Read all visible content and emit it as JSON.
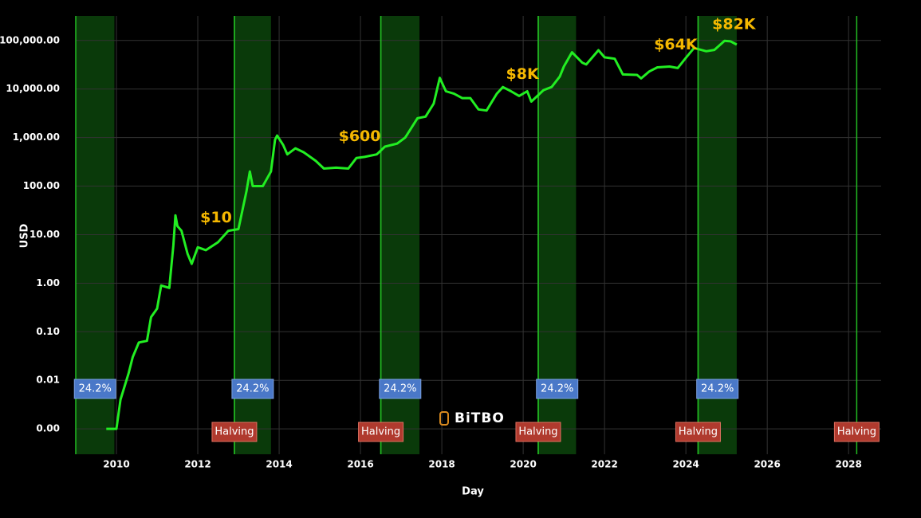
{
  "chart_data": {
    "type": "line",
    "xlabel": "Day",
    "ylabel": "USD",
    "watermark": "BiTBO",
    "color": "#22ee22",
    "x": [
      2009.75,
      2010.0,
      2010.1,
      2010.3,
      2010.4,
      2010.55,
      2010.75,
      2010.85,
      2011.0,
      2011.1,
      2011.3,
      2011.4,
      2011.45,
      2011.5,
      2011.6,
      2011.75,
      2011.85,
      2012.0,
      2012.2,
      2012.5,
      2012.75,
      2013.0,
      2013.2,
      2013.28,
      2013.35,
      2013.6,
      2013.8,
      2013.9,
      2013.95,
      2014.1,
      2014.2,
      2014.4,
      2014.6,
      2014.9,
      2015.1,
      2015.4,
      2015.7,
      2015.9,
      2016.1,
      2016.4,
      2016.6,
      2016.9,
      2017.1,
      2017.4,
      2017.6,
      2017.8,
      2017.95,
      2018.1,
      2018.3,
      2018.5,
      2018.7,
      2018.9,
      2019.1,
      2019.35,
      2019.5,
      2019.7,
      2019.9,
      2020.1,
      2020.2,
      2020.5,
      2020.7,
      2020.9,
      2021.0,
      2021.2,
      2021.45,
      2021.55,
      2021.85,
      2022.0,
      2022.25,
      2022.45,
      2022.8,
      2022.9,
      2023.1,
      2023.3,
      2023.6,
      2023.8,
      2024.0,
      2024.2,
      2024.5,
      2024.7,
      2024.95,
      2025.1,
      2025.25
    ],
    "values": [
      0.001,
      0.001,
      0.004,
      0.014,
      0.03,
      0.06,
      0.065,
      0.2,
      0.3,
      0.9,
      0.8,
      6,
      25,
      15,
      12,
      4,
      2.5,
      5.5,
      4.8,
      7,
      12,
      13,
      80,
      200,
      100,
      100,
      200,
      900,
      1100,
      700,
      450,
      600,
      500,
      330,
      230,
      240,
      230,
      380,
      400,
      450,
      650,
      750,
      1000,
      2500,
      2700,
      5000,
      17000,
      9000,
      8000,
      6500,
      6500,
      3800,
      3600,
      8000,
      11000,
      9000,
      7200,
      9000,
      5500,
      9500,
      11000,
      18000,
      29000,
      57000,
      35000,
      32000,
      63000,
      45000,
      42000,
      20000,
      19500,
      16500,
      23000,
      28000,
      29000,
      27000,
      44000,
      70000,
      60000,
      64000,
      98000,
      96000,
      82000
    ],
    "log_y": true,
    "grid": true,
    "xlim": [
      2009,
      2028.8
    ],
    "xticks": [
      2010,
      2012,
      2014,
      2016,
      2018,
      2020,
      2022,
      2024,
      2026,
      2028
    ],
    "ylim": [
      0.0003,
      320000
    ],
    "yticks": [
      {
        "value": 0.001,
        "label": "0.00"
      },
      {
        "value": 0.01,
        "label": "0.01"
      },
      {
        "value": 0.1,
        "label": "0.10"
      },
      {
        "value": 1,
        "label": "1.00"
      },
      {
        "value": 10,
        "label": "10.00"
      },
      {
        "value": 100,
        "label": "100.00"
      },
      {
        "value": 1000,
        "label": "1,000.00"
      },
      {
        "value": 10000,
        "label": "10,000.00"
      },
      {
        "value": 100000,
        "label": "100,000.00"
      }
    ],
    "bands": [
      {
        "start": 2009.0,
        "end": 2009.95,
        "label": "24.2%"
      },
      {
        "start": 2012.9,
        "end": 2013.8,
        "label": "24.2%"
      },
      {
        "start": 2016.5,
        "end": 2017.45,
        "label": "24.2%"
      },
      {
        "start": 2020.37,
        "end": 2021.3,
        "label": "24.2%"
      },
      {
        "start": 2024.3,
        "end": 2025.25,
        "label": "24.2%"
      }
    ],
    "halvings": [
      {
        "x": 2012.9,
        "label": "Halving"
      },
      {
        "x": 2016.5,
        "label": "Halving"
      },
      {
        "x": 2020.37,
        "label": "Halving"
      },
      {
        "x": 2024.3,
        "label": "Halving"
      },
      {
        "x": 2028.2,
        "label": "Halving"
      }
    ],
    "annotations": [
      {
        "text": "$10",
        "x": 2012.45,
        "y": 22
      },
      {
        "text": "$600",
        "x": 2015.98,
        "y": 1050
      },
      {
        "text": "$8K",
        "x": 2019.98,
        "y": 20000
      },
      {
        "text": "$64K",
        "x": 2023.75,
        "y": 80000
      },
      {
        "text": "$82K",
        "x": 2025.18,
        "y": 213000
      }
    ]
  }
}
